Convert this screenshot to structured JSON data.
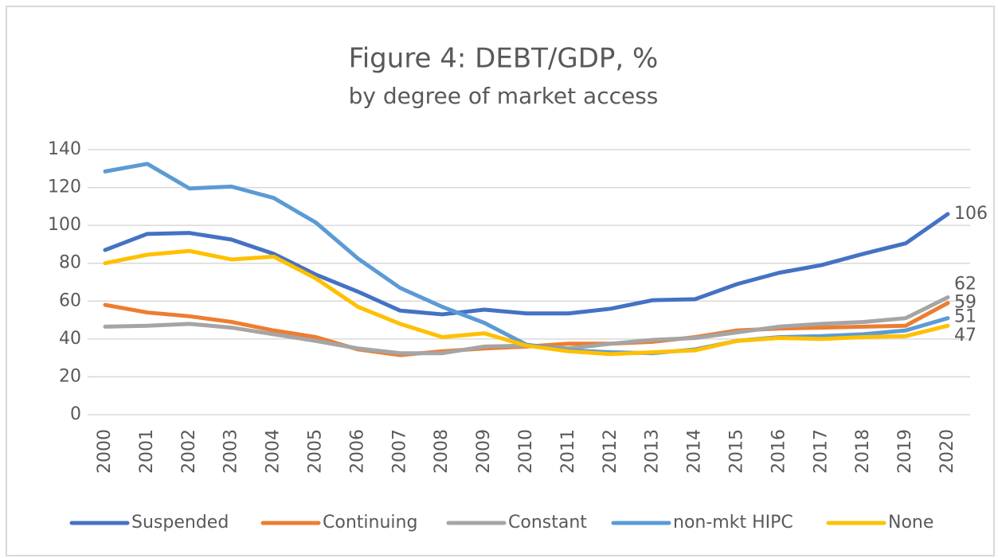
{
  "chart_data": {
    "type": "line",
    "title": "Figure 4: DEBT/GDP, %",
    "subtitle": "by degree of market access",
    "categories": [
      "2000",
      "2001",
      "2002",
      "2003",
      "2004",
      "2005",
      "2006",
      "2007",
      "2008",
      "2009",
      "2010",
      "2011",
      "2012",
      "2013",
      "2014",
      "2015",
      "2016",
      "2017",
      "2018",
      "2019",
      "2020"
    ],
    "series": [
      {
        "name": "Suspended",
        "color": "#4472c4",
        "values": [
          87,
          95.5,
          96,
          92.5,
          85,
          74,
          65,
          55,
          53,
          55.5,
          53.5,
          53.5,
          56,
          60.5,
          61,
          69,
          75,
          79,
          85,
          90.5,
          106
        ]
      },
      {
        "name": "Continuing",
        "color": "#ed7d31",
        "values": [
          58,
          54,
          52,
          49,
          44.5,
          41,
          34.5,
          31.5,
          33.5,
          35,
          36,
          37.5,
          37.5,
          38.5,
          41,
          44.5,
          45.5,
          46,
          46.5,
          47,
          59
        ]
      },
      {
        "name": "Constant",
        "color": "#a5a5a5",
        "values": [
          46.5,
          47,
          48,
          46,
          42.5,
          39,
          35,
          32.5,
          32.5,
          36,
          36.5,
          35,
          37.5,
          39.5,
          40.5,
          43.5,
          46.5,
          48,
          49,
          51,
          62
        ]
      },
      {
        "name": "non-mkt HIPC",
        "color": "#5b9bd5",
        "values": [
          128.5,
          132.5,
          119.5,
          120.5,
          114.5,
          101.5,
          82.5,
          67,
          57,
          48.5,
          37,
          34,
          33,
          32.5,
          34.5,
          39,
          41,
          41.5,
          42.5,
          44.5,
          51
        ]
      },
      {
        "name": "None",
        "color": "#ffc000",
        "values": [
          80,
          84.5,
          86.5,
          82,
          83.5,
          72,
          57,
          48,
          41,
          43,
          36.5,
          33.5,
          32,
          33,
          34,
          39,
          40.5,
          40,
          41,
          41.5,
          47
        ]
      }
    ],
    "ylim": [
      0,
      140
    ],
    "yticks": [
      0,
      20,
      40,
      60,
      80,
      100,
      120,
      140
    ],
    "grid": true,
    "legend": "bottom"
  }
}
